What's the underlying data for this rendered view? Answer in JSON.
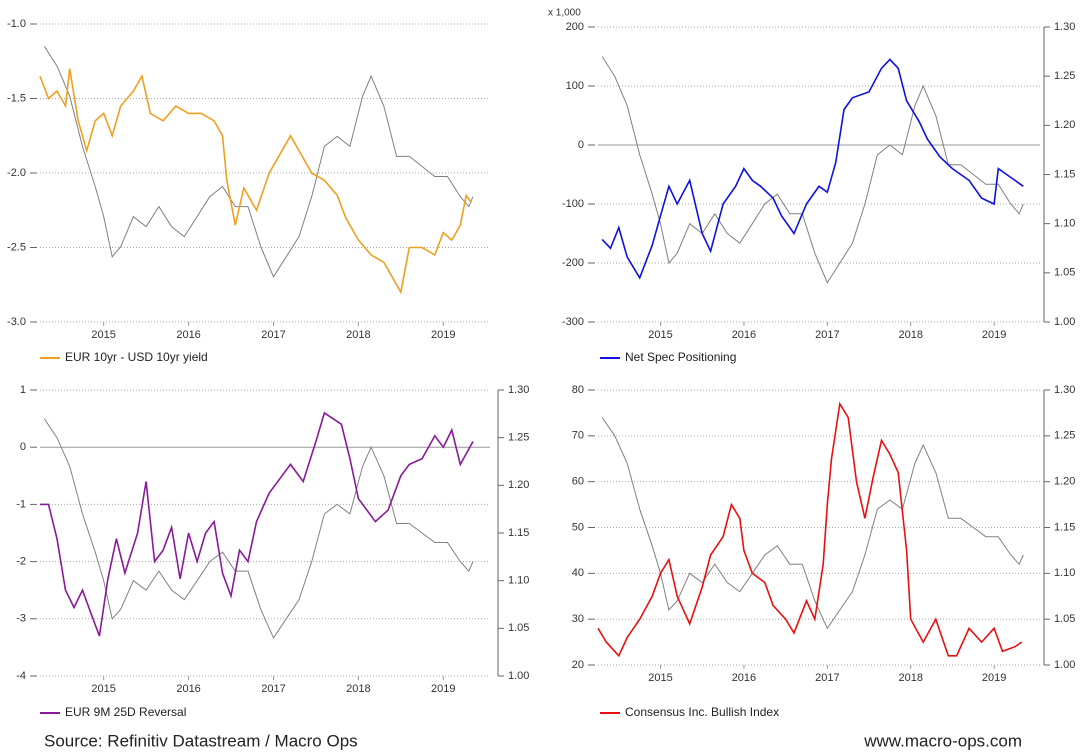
{
  "chart_data": [
    {
      "type": "line",
      "xlim": [
        2014.25,
        2019.55
      ],
      "xticks": [
        2015,
        2016,
        2017,
        2018,
        2019
      ],
      "ylim": [
        -3,
        -1
      ],
      "yticks": [
        {
          "value": -1,
          "label": "-1.0"
        },
        -1.5,
        {
          "value": -2,
          "label": "-2.0"
        },
        -2.5,
        {
          "value": -3,
          "label": "-3.0"
        }
      ],
      "y2lim": [
        0.995,
        1.292
      ],
      "grid": true,
      "series": [
        {
          "name": "EUR 10yr - USD 10yr yield",
          "color": "#f0a020",
          "x": [
            2014.25,
            2014.35,
            2014.45,
            2014.55,
            2014.6,
            2014.7,
            2014.8,
            2014.9,
            2015.0,
            2015.1,
            2015.2,
            2015.35,
            2015.45,
            2015.55,
            2015.7,
            2015.85,
            2016.0,
            2016.15,
            2016.3,
            2016.4,
            2016.45,
            2016.55,
            2016.65,
            2016.8,
            2016.95,
            2017.1,
            2017.2,
            2017.3,
            2017.45,
            2017.6,
            2017.75,
            2017.85,
            2018.0,
            2018.15,
            2018.3,
            2018.45,
            2018.5,
            2018.6,
            2018.75,
            2018.9,
            2019.0,
            2019.1,
            2019.2,
            2019.27,
            2019.33
          ],
          "values": [
            -1.35,
            -1.5,
            -1.45,
            -1.55,
            -1.3,
            -1.65,
            -1.85,
            -1.65,
            -1.6,
            -1.75,
            -1.55,
            -1.45,
            -1.35,
            -1.6,
            -1.65,
            -1.55,
            -1.6,
            -1.6,
            -1.65,
            -1.75,
            -2.05,
            -2.35,
            -2.1,
            -2.25,
            -2.0,
            -1.85,
            -1.75,
            -1.85,
            -2.0,
            -2.05,
            -2.15,
            -2.3,
            -2.45,
            -2.55,
            -2.6,
            -2.75,
            -2.8,
            -2.5,
            -2.5,
            -2.55,
            -2.4,
            -2.45,
            -2.35,
            -2.15,
            -2.2
          ]
        },
        {
          "color": "#808080",
          "axis": "y2",
          "x": [
            2014.3,
            2014.45,
            2014.6,
            2014.75,
            2014.9,
            2015.0,
            2015.1,
            2015.2,
            2015.35,
            2015.5,
            2015.65,
            2015.8,
            2015.95,
            2016.1,
            2016.25,
            2016.4,
            2016.55,
            2016.7,
            2016.85,
            2017.0,
            2017.15,
            2017.3,
            2017.45,
            2017.6,
            2017.75,
            2017.9,
            2018.05,
            2018.15,
            2018.3,
            2018.45,
            2018.6,
            2018.75,
            2018.9,
            2019.05,
            2019.2,
            2019.3,
            2019.35
          ],
          "values": [
            1.27,
            1.25,
            1.22,
            1.17,
            1.13,
            1.1,
            1.06,
            1.07,
            1.1,
            1.09,
            1.11,
            1.09,
            1.08,
            1.1,
            1.12,
            1.13,
            1.11,
            1.11,
            1.07,
            1.04,
            1.06,
            1.08,
            1.12,
            1.17,
            1.18,
            1.17,
            1.22,
            1.24,
            1.21,
            1.16,
            1.16,
            1.15,
            1.14,
            1.14,
            1.12,
            1.11,
            1.12
          ]
        }
      ]
    },
    {
      "type": "line",
      "y_axis_note": "x 1,000",
      "xlim": [
        2014.25,
        2019.55
      ],
      "xticks": [
        2015,
        2016,
        2017,
        2018,
        2019
      ],
      "ylim": [
        -300,
        200
      ],
      "yticks": [
        200,
        100,
        0,
        -100,
        -200,
        -300
      ],
      "y2lim": [
        1.0,
        1.3
      ],
      "y2ticks": [
        {
          "value": 1.3,
          "label": "1.30"
        },
        1.25,
        {
          "value": 1.2,
          "label": "1.20"
        },
        1.15,
        {
          "value": 1.1,
          "label": "1.10"
        },
        1.05,
        {
          "value": 1.0,
          "label": "1.00"
        }
      ],
      "grid": true,
      "series": [
        {
          "name": "Net Spec Positioning",
          "color": "#1010e0",
          "x": [
            2014.3,
            2014.4,
            2014.5,
            2014.6,
            2014.75,
            2014.9,
            2015.0,
            2015.1,
            2015.2,
            2015.35,
            2015.5,
            2015.6,
            2015.75,
            2015.9,
            2016.0,
            2016.1,
            2016.2,
            2016.35,
            2016.45,
            2016.6,
            2016.75,
            2016.9,
            2017.0,
            2017.1,
            2017.2,
            2017.3,
            2017.5,
            2017.65,
            2017.75,
            2017.85,
            2017.95,
            2018.1,
            2018.2,
            2018.35,
            2018.5,
            2018.7,
            2018.85,
            2019.0,
            2019.05,
            2019.15,
            2019.25,
            2019.35
          ],
          "values": [
            -160,
            -175,
            -140,
            -190,
            -225,
            -170,
            -120,
            -70,
            -100,
            -60,
            -150,
            -180,
            -100,
            -70,
            -40,
            -60,
            -70,
            -90,
            -120,
            -150,
            -100,
            -70,
            -80,
            -30,
            60,
            80,
            90,
            130,
            145,
            130,
            75,
            40,
            10,
            -20,
            -40,
            -60,
            -90,
            -100,
            -40,
            -50,
            -60,
            -70
          ]
        },
        {
          "color": "#808080",
          "axis": "y2",
          "x": [
            2014.3,
            2014.45,
            2014.6,
            2014.75,
            2014.9,
            2015.0,
            2015.1,
            2015.2,
            2015.35,
            2015.5,
            2015.65,
            2015.8,
            2015.95,
            2016.1,
            2016.25,
            2016.4,
            2016.55,
            2016.7,
            2016.85,
            2017.0,
            2017.15,
            2017.3,
            2017.45,
            2017.6,
            2017.75,
            2017.9,
            2018.05,
            2018.15,
            2018.3,
            2018.45,
            2018.6,
            2018.75,
            2018.9,
            2019.05,
            2019.2,
            2019.3,
            2019.35
          ],
          "values": [
            1.27,
            1.25,
            1.22,
            1.17,
            1.13,
            1.1,
            1.06,
            1.07,
            1.1,
            1.09,
            1.11,
            1.09,
            1.08,
            1.1,
            1.12,
            1.13,
            1.11,
            1.11,
            1.07,
            1.04,
            1.06,
            1.08,
            1.12,
            1.17,
            1.18,
            1.17,
            1.22,
            1.24,
            1.21,
            1.16,
            1.16,
            1.15,
            1.14,
            1.14,
            1.12,
            1.11,
            1.12
          ]
        }
      ]
    },
    {
      "type": "line",
      "xlim": [
        2014.25,
        2019.55
      ],
      "xticks": [
        2015,
        2016,
        2017,
        2018,
        2019
      ],
      "ylim": [
        -4,
        1
      ],
      "yticks": [
        1,
        0,
        -1,
        -2,
        -3,
        -4
      ],
      "y2lim": [
        1.0,
        1.3
      ],
      "y2ticks": [
        {
          "value": 1.3,
          "label": "1.30"
        },
        1.25,
        {
          "value": 1.2,
          "label": "1.20"
        },
        1.15,
        {
          "value": 1.1,
          "label": "1.10"
        },
        1.05,
        {
          "value": 1.0,
          "label": "1.00"
        }
      ],
      "grid": true,
      "series": [
        {
          "name": "EUR 9M 25D Reversal",
          "color": "#8a1a9a",
          "x": [
            2014.25,
            2014.35,
            2014.45,
            2014.55,
            2014.65,
            2014.75,
            2014.85,
            2014.95,
            2015.05,
            2015.15,
            2015.25,
            2015.4,
            2015.5,
            2015.6,
            2015.7,
            2015.8,
            2015.9,
            2016.0,
            2016.1,
            2016.2,
            2016.3,
            2016.4,
            2016.5,
            2016.6,
            2016.7,
            2016.8,
            2016.95,
            2017.1,
            2017.2,
            2017.35,
            2017.5,
            2017.6,
            2017.7,
            2017.8,
            2017.9,
            2018.0,
            2018.1,
            2018.2,
            2018.35,
            2018.5,
            2018.6,
            2018.75,
            2018.9,
            2019.0,
            2019.1,
            2019.2,
            2019.35
          ],
          "values": [
            -1.0,
            -1.0,
            -1.6,
            -2.5,
            -2.8,
            -2.5,
            -2.9,
            -3.3,
            -2.3,
            -1.6,
            -2.2,
            -1.5,
            -0.6,
            -2.0,
            -1.8,
            -1.4,
            -2.3,
            -1.5,
            -2.0,
            -1.5,
            -1.3,
            -2.2,
            -2.6,
            -1.8,
            -2.0,
            -1.3,
            -0.8,
            -0.5,
            -0.3,
            -0.6,
            0.1,
            0.6,
            0.5,
            0.4,
            -0.2,
            -0.9,
            -1.1,
            -1.3,
            -1.1,
            -0.5,
            -0.3,
            -0.2,
            0.2,
            0.0,
            0.3,
            -0.3,
            0.1
          ]
        },
        {
          "color": "#808080",
          "axis": "y2",
          "x": [
            2014.3,
            2014.45,
            2014.6,
            2014.75,
            2014.9,
            2015.0,
            2015.1,
            2015.2,
            2015.35,
            2015.5,
            2015.65,
            2015.8,
            2015.95,
            2016.1,
            2016.25,
            2016.4,
            2016.55,
            2016.7,
            2016.85,
            2017.0,
            2017.15,
            2017.3,
            2017.45,
            2017.6,
            2017.75,
            2017.9,
            2018.05,
            2018.15,
            2018.3,
            2018.45,
            2018.6,
            2018.75,
            2018.9,
            2019.05,
            2019.2,
            2019.3,
            2019.35
          ],
          "values": [
            1.27,
            1.25,
            1.22,
            1.17,
            1.13,
            1.1,
            1.06,
            1.07,
            1.1,
            1.09,
            1.11,
            1.09,
            1.08,
            1.1,
            1.12,
            1.13,
            1.11,
            1.11,
            1.07,
            1.04,
            1.06,
            1.08,
            1.12,
            1.17,
            1.18,
            1.17,
            1.22,
            1.24,
            1.21,
            1.16,
            1.16,
            1.15,
            1.14,
            1.14,
            1.12,
            1.11,
            1.12
          ]
        }
      ]
    },
    {
      "type": "line",
      "xlim": [
        2014.25,
        2019.55
      ],
      "xticks": [
        2015,
        2016,
        2017,
        2018,
        2019
      ],
      "ylim": [
        20,
        80
      ],
      "yticks": [
        80,
        70,
        60,
        50,
        40,
        30,
        20
      ],
      "y2lim": [
        1.0,
        1.3
      ],
      "y2ticks": [
        {
          "value": 1.3,
          "label": "1.30"
        },
        1.25,
        {
          "value": 1.2,
          "label": "1.20"
        },
        1.15,
        {
          "value": 1.1,
          "label": "1.10"
        },
        1.05,
        {
          "value": 1.0,
          "label": "1.00"
        }
      ],
      "grid": true,
      "series": [
        {
          "name": "Consensus Inc. Bullish Index",
          "color": "#e81010",
          "x": [
            2014.25,
            2014.35,
            2014.5,
            2014.6,
            2014.75,
            2014.9,
            2015.0,
            2015.1,
            2015.2,
            2015.35,
            2015.5,
            2015.6,
            2015.75,
            2015.85,
            2015.95,
            2016.0,
            2016.1,
            2016.25,
            2016.35,
            2016.5,
            2016.6,
            2016.75,
            2016.85,
            2016.95,
            2017.0,
            2017.05,
            2017.15,
            2017.25,
            2017.35,
            2017.45,
            2017.55,
            2017.65,
            2017.75,
            2017.85,
            2017.95,
            2018.0,
            2018.15,
            2018.3,
            2018.45,
            2018.55,
            2018.7,
            2018.85,
            2019.0,
            2019.1,
            2019.25,
            2019.33
          ],
          "values": [
            28,
            25,
            22,
            26,
            30,
            35,
            40,
            43,
            35,
            29,
            37,
            44,
            48,
            55,
            52,
            45,
            40,
            38,
            33,
            30,
            27,
            34,
            30,
            42,
            55,
            65,
            77,
            74,
            60,
            52,
            61,
            69,
            66,
            62,
            45,
            30,
            25,
            30,
            22,
            22,
            28,
            25,
            28,
            23,
            24,
            25
          ]
        },
        {
          "color": "#808080",
          "axis": "y2",
          "x": [
            2014.3,
            2014.45,
            2014.6,
            2014.75,
            2014.9,
            2015.0,
            2015.1,
            2015.2,
            2015.35,
            2015.5,
            2015.65,
            2015.8,
            2015.95,
            2016.1,
            2016.25,
            2016.4,
            2016.55,
            2016.7,
            2016.85,
            2017.0,
            2017.15,
            2017.3,
            2017.45,
            2017.6,
            2017.75,
            2017.9,
            2018.05,
            2018.15,
            2018.3,
            2018.45,
            2018.6,
            2018.75,
            2018.9,
            2019.05,
            2019.2,
            2019.3,
            2019.35
          ],
          "values": [
            1.27,
            1.25,
            1.22,
            1.17,
            1.13,
            1.1,
            1.06,
            1.07,
            1.1,
            1.09,
            1.11,
            1.09,
            1.08,
            1.1,
            1.12,
            1.13,
            1.11,
            1.11,
            1.07,
            1.04,
            1.06,
            1.08,
            1.12,
            1.17,
            1.18,
            1.17,
            1.22,
            1.24,
            1.21,
            1.16,
            1.16,
            1.15,
            1.14,
            1.14,
            1.12,
            1.11,
            1.12
          ]
        }
      ]
    }
  ],
  "footer": {
    "source": "Source: Refinitiv Datastream / Macro Ops",
    "website": "www.macro-ops.com"
  }
}
